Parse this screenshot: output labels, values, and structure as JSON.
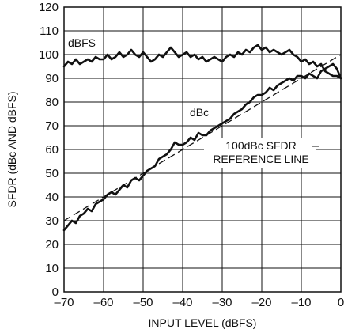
{
  "chart_data": {
    "type": "line",
    "title": "",
    "xlabel": "INPUT LEVEL (dBFS)",
    "ylabel": "SFDR (dBc AND dBFS)",
    "xlim": [
      -70,
      0
    ],
    "ylim": [
      0,
      120
    ],
    "x_ticks": [
      -70,
      -60,
      -50,
      -40,
      -30,
      -20,
      -10,
      0
    ],
    "x_tick_labels": [
      "–70",
      "–60",
      "–50",
      "–40",
      "–30",
      "–20",
      "–10",
      "0"
    ],
    "y_ticks": [
      0,
      10,
      20,
      30,
      40,
      50,
      60,
      70,
      80,
      90,
      100,
      110,
      120
    ],
    "y_tick_labels": [
      "0",
      "10",
      "20",
      "30",
      "40",
      "50",
      "60",
      "70",
      "80",
      "90",
      "100",
      "110",
      "120"
    ],
    "grid": true,
    "series": [
      {
        "name": "dBFS",
        "style": "solid",
        "x": [
          -70,
          -69,
          -68,
          -67,
          -66,
          -65,
          -64,
          -63,
          -62,
          -61,
          -60,
          -59,
          -58,
          -57,
          -56,
          -55,
          -54,
          -53,
          -52,
          -51,
          -50,
          -49,
          -48,
          -47,
          -46,
          -45,
          -44,
          -43,
          -42,
          -41,
          -40,
          -39,
          -38,
          -37,
          -36,
          -35,
          -34,
          -33,
          -32,
          -31,
          -30,
          -29,
          -28,
          -27,
          -26,
          -25,
          -24,
          -23,
          -22,
          -21,
          -20,
          -19,
          -18,
          -17,
          -16,
          -15,
          -14,
          -13,
          -12,
          -11,
          -10,
          -9,
          -8,
          -7,
          -6,
          -5,
          -4,
          -3,
          -2,
          -1,
          0
        ],
        "y": [
          95,
          97,
          96,
          98,
          96,
          97,
          98,
          97,
          99,
          98,
          98,
          100,
          98,
          99,
          101,
          99,
          100,
          102,
          100,
          99,
          101,
          99,
          97,
          98,
          100,
          99,
          101,
          103,
          101,
          99,
          100,
          101,
          99,
          100,
          98,
          99,
          97,
          98,
          99,
          98,
          97,
          99,
          100,
          99,
          101,
          100,
          102,
          101,
          103,
          104,
          102,
          103,
          101,
          102,
          101,
          100,
          101,
          102,
          100,
          99,
          97,
          98,
          96,
          97,
          95,
          96,
          93,
          92,
          91,
          91,
          90
        ]
      },
      {
        "name": "dBc",
        "style": "solid",
        "x": [
          -70,
          -69,
          -68,
          -67,
          -66,
          -65,
          -64,
          -63,
          -62,
          -61,
          -60,
          -59,
          -58,
          -57,
          -56,
          -55,
          -54,
          -53,
          -52,
          -51,
          -50,
          -49,
          -48,
          -47,
          -46,
          -45,
          -44,
          -43,
          -42,
          -41,
          -40,
          -39,
          -38,
          -37,
          -36,
          -35,
          -34,
          -33,
          -32,
          -31,
          -30,
          -29,
          -28,
          -27,
          -26,
          -25,
          -24,
          -23,
          -22,
          -21,
          -20,
          -19,
          -18,
          -17,
          -16,
          -15,
          -14,
          -13,
          -12,
          -11,
          -10,
          -9,
          -8,
          -7,
          -6,
          -5,
          -4,
          -3,
          -2,
          -1,
          0
        ],
        "y": [
          26,
          28,
          30,
          29,
          32,
          33,
          35,
          34,
          37,
          38,
          39,
          41,
          42,
          41,
          43,
          45,
          44,
          47,
          48,
          47,
          49,
          51,
          52,
          53,
          56,
          57,
          58,
          60,
          63,
          62,
          62,
          63,
          65,
          64,
          67,
          66,
          66,
          68,
          69,
          70,
          71,
          72,
          73,
          75,
          76,
          77,
          79,
          80,
          82,
          83,
          83,
          84,
          86,
          85,
          87,
          88,
          89,
          90,
          89,
          91,
          91,
          90,
          92,
          91,
          90,
          93,
          94,
          95,
          96,
          94,
          90
        ]
      },
      {
        "name": "100dBc SFDR REFERENCE LINE",
        "style": "dashed",
        "x": [
          -70,
          0
        ],
        "y": [
          30,
          100
        ]
      }
    ],
    "series_labels": {
      "dbfs": "dBFS",
      "dbc": "dBc",
      "ref_line1": "100dBc SFDR",
      "ref_line2": "REFERENCE LINE"
    }
  }
}
